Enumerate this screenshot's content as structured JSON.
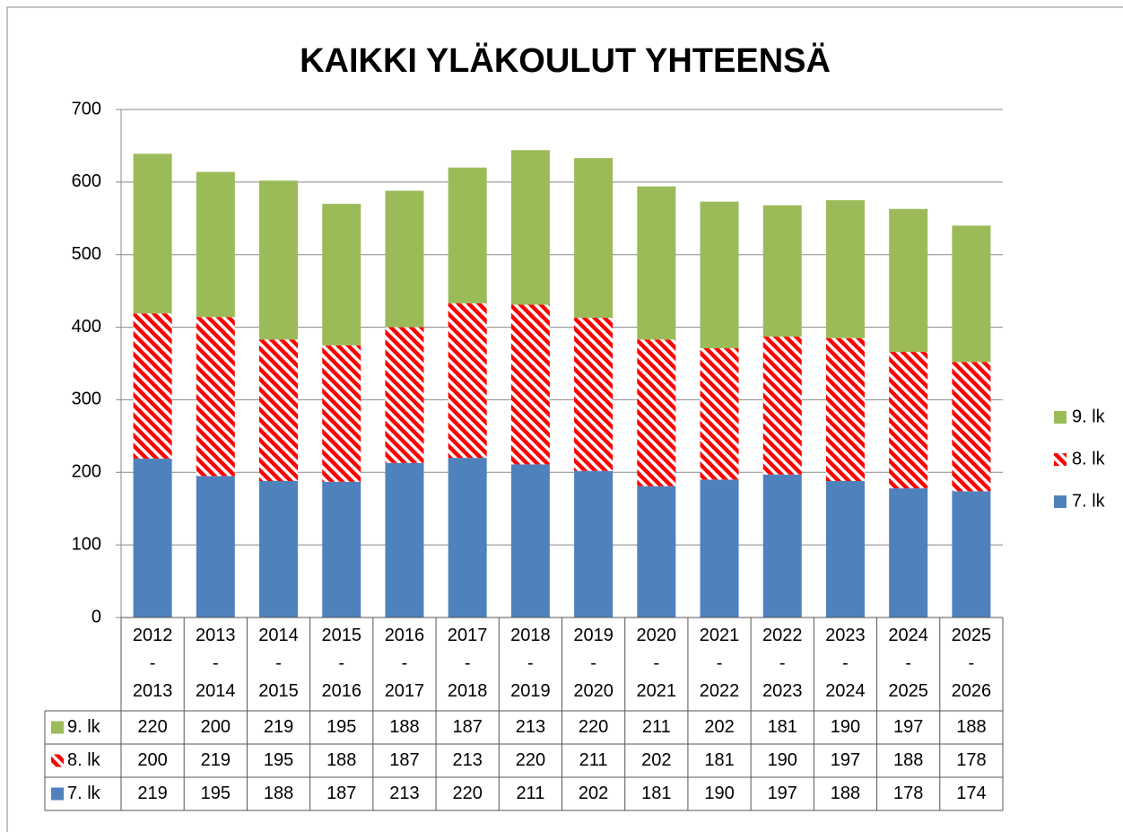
{
  "chart_data": {
    "type": "stacked_bar",
    "title": "KAIKKI YLÄKOULUT YHTEENSÄ",
    "categories": [
      "2012\n-\n2013",
      "2013\n-\n2014",
      "2014\n-\n2015",
      "2015\n-\n2016",
      "2016\n-\n2017",
      "2017\n-\n2018",
      "2018\n-\n2019",
      "2019\n-\n2020",
      "2020\n-\n2021",
      "2021\n-\n2022",
      "2022\n-\n2023",
      "2023\n-\n2024",
      "2024\n-\n2025",
      "2025\n-\n2026"
    ],
    "series": [
      {
        "name": "7. lk",
        "color": "#4f81bd",
        "pattern": "solid",
        "values": [
          219,
          195,
          188,
          187,
          213,
          220,
          211,
          202,
          181,
          190,
          197,
          188,
          178,
          174
        ]
      },
      {
        "name": "8. lk",
        "color": "#ff0000",
        "pattern": "diagonal",
        "values": [
          200,
          219,
          195,
          188,
          187,
          213,
          220,
          211,
          202,
          181,
          190,
          197,
          188,
          178
        ]
      },
      {
        "name": "9. lk",
        "color": "#9bbb59",
        "pattern": "solid",
        "values": [
          220,
          200,
          219,
          195,
          188,
          187,
          213,
          220,
          211,
          202,
          181,
          190,
          197,
          188
        ]
      }
    ],
    "ylim": [
      0,
      700
    ],
    "yticks": [
      0,
      100,
      200,
      300,
      400,
      500,
      600,
      700
    ],
    "grid": true,
    "legend": "right",
    "data_table": true
  }
}
